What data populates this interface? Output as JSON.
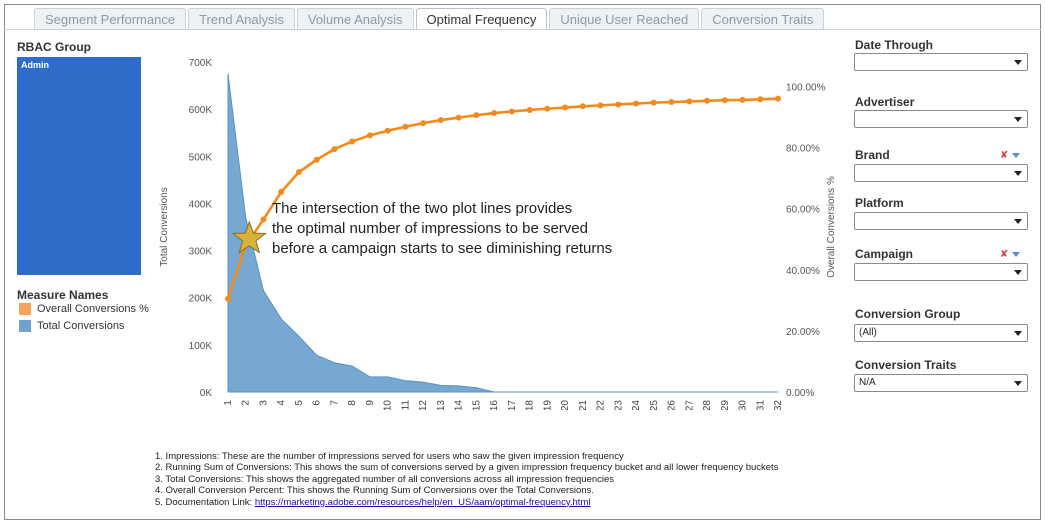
{
  "tabs": [
    {
      "label": "Segment Performance",
      "active": false
    },
    {
      "label": "Trend Analysis",
      "active": false
    },
    {
      "label": "Volume Analysis",
      "active": false
    },
    {
      "label": "Optimal Frequency",
      "active": true
    },
    {
      "label": "Unique User Reached",
      "active": false
    },
    {
      "label": "Conversion Traits",
      "active": false
    }
  ],
  "left": {
    "rbac_title": "RBAC Group",
    "rbac_value": "Admin",
    "measure_title": "Measure Names",
    "legend": [
      {
        "label": "Overall Conversions %",
        "color": "#f7a35c"
      },
      {
        "label": "Total Conversions",
        "color": "#6fa3cf"
      }
    ]
  },
  "callout": [
    "The intersection of the two plot lines provides",
    "the optimal number of impressions to be served",
    "before a campaign starts to see diminishing returns"
  ],
  "notes": {
    "lines": [
      "1. Impressions: These are the number of impressions served for users who saw the given impression frequency",
      "2. Running Sum of Conversions: This shows the sum of conversions served by a given impression frequency bucket and all lower frequency buckets",
      "3. Total Conversions: This shows the aggregated number of all conversions across all impression frequencies",
      "4. Overall Conversion Percent: This shows the Running Sum of Conversions over the Total Conversions."
    ],
    "link_prefix": "5. Documentation Link: ",
    "link_text": "https://marketing.adobe.com/resources/help/en_US/aam/optimal-frequency.html"
  },
  "filters": [
    {
      "label": "Date Through",
      "value": "",
      "has_icons": false
    },
    {
      "label": "Advertiser",
      "value": "",
      "has_icons": false
    },
    {
      "label": "Brand",
      "value": "",
      "has_icons": true
    },
    {
      "label": "Platform",
      "value": "",
      "has_icons": false
    },
    {
      "label": "Campaign",
      "value": "",
      "has_icons": true
    },
    {
      "label": "Conversion Group",
      "value": "(All)",
      "has_icons": false
    },
    {
      "label": "Conversion Traits",
      "value": "N/A",
      "has_icons": false
    }
  ],
  "chart_data": {
    "type": "area",
    "x": [
      1,
      2,
      3,
      4,
      5,
      6,
      7,
      8,
      9,
      10,
      11,
      12,
      13,
      14,
      15,
      16,
      17,
      18,
      19,
      20,
      21,
      22,
      23,
      24,
      25,
      26,
      27,
      28,
      29,
      30,
      31,
      32
    ],
    "x_tick_labels": [
      "1",
      "2",
      "3",
      "4",
      "5",
      "6",
      "7",
      "8",
      "9",
      "10",
      "11",
      "12",
      "13",
      "14",
      "15",
      "16",
      "17",
      "18",
      "19",
      "20",
      "21",
      "22",
      "23",
      "24",
      "25",
      "26",
      "27",
      "28",
      "29",
      "30",
      "31",
      "32"
    ],
    "series": [
      {
        "name": "Total Conversions",
        "type": "area",
        "axis": "left",
        "color": "#6fa3cf",
        "values": [
          675000,
          370000,
          215000,
          155000,
          118000,
          78000,
          62000,
          55000,
          32000,
          32000,
          24000,
          21000,
          14000,
          13000,
          9000,
          0,
          0,
          0,
          0,
          0,
          0,
          0,
          0,
          0,
          0,
          0,
          0,
          0,
          0,
          0,
          0,
          0
        ]
      },
      {
        "name": "Overall Conversions %",
        "type": "line",
        "axis": "right",
        "color": "#f28a1e",
        "values": [
          30.5,
          48,
          56.5,
          65.5,
          72,
          76,
          79.5,
          82,
          84,
          85.5,
          86.8,
          88,
          89,
          89.8,
          90.6,
          91.3,
          91.8,
          92.3,
          92.7,
          93.1,
          93.5,
          93.8,
          94.1,
          94.4,
          94.7,
          94.9,
          95.1,
          95.3,
          95.5,
          95.6,
          95.8,
          96
        ]
      }
    ],
    "y_left": {
      "label": "Total Conversions",
      "ticks": [
        "0K",
        "100K",
        "200K",
        "300K",
        "400K",
        "500K",
        "600K",
        "700K"
      ],
      "range": [
        0,
        700000
      ]
    },
    "y_right": {
      "label": "Overall Conversions %",
      "ticks": [
        "0.00%",
        "20.00%",
        "40.00%",
        "60.00%",
        "80.00%",
        "100.00%"
      ],
      "range": [
        0,
        108
      ]
    },
    "marker": {
      "type": "star",
      "x": 2.2,
      "y_left": 325000
    }
  }
}
